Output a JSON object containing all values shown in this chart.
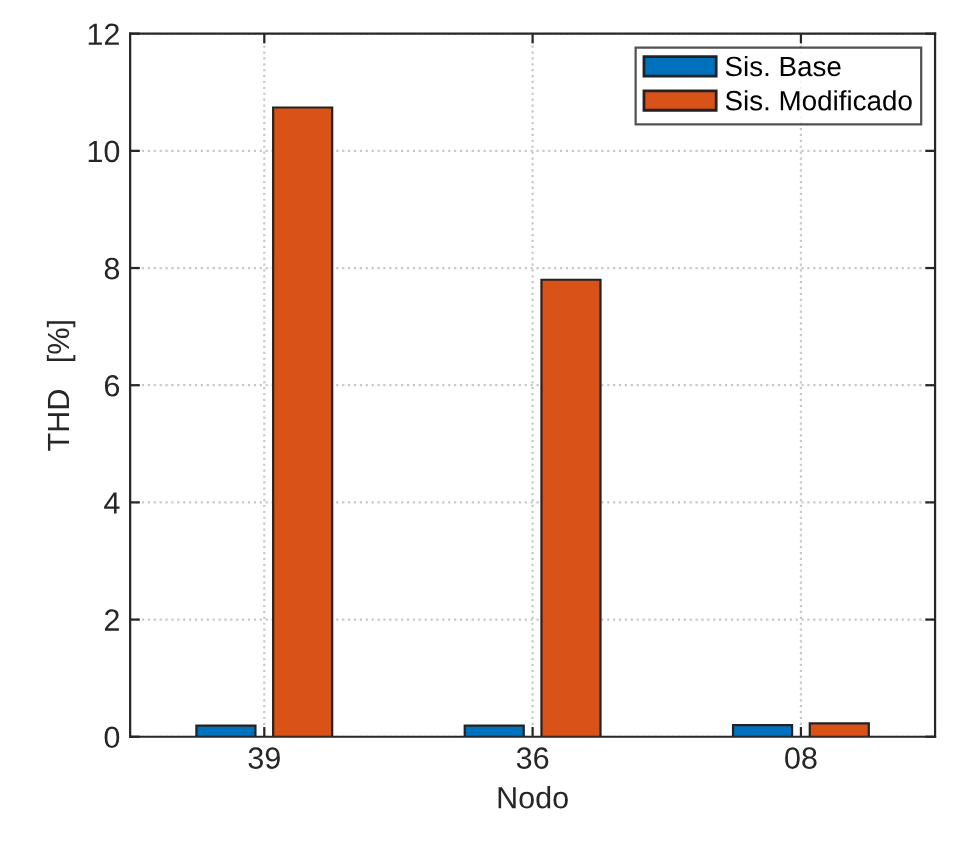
{
  "chart_data": {
    "type": "bar",
    "xlabel": "Nodo",
    "ylabel": "THD   [%]",
    "categories": [
      "39",
      "36",
      "08"
    ],
    "series": [
      {
        "name": "Sis. Base",
        "color": "#0072bd",
        "values": [
          0.19,
          0.19,
          0.2
        ]
      },
      {
        "name": "Sis. Modificado",
        "color": "#d95319",
        "values": [
          10.74,
          7.8,
          0.23
        ]
      }
    ],
    "ylim": [
      0,
      12
    ],
    "yticks": [
      0,
      2,
      4,
      6,
      8,
      10,
      12
    ],
    "grid": true,
    "legend": "top right"
  }
}
